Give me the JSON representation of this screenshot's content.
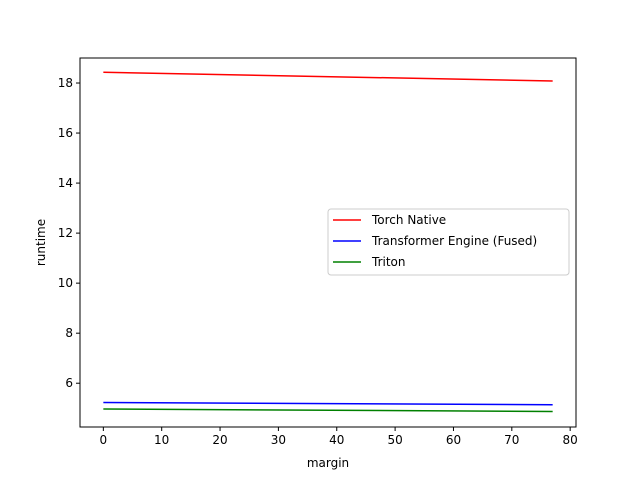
{
  "chart_data": {
    "type": "line",
    "title": "",
    "xlabel": "margin",
    "ylabel": "runtime",
    "xlim": [
      -4,
      81
    ],
    "ylim": [
      4.25,
      19.0
    ],
    "xticks": [
      0,
      10,
      20,
      30,
      40,
      50,
      60,
      70,
      80
    ],
    "yticks": [
      6,
      8,
      10,
      12,
      14,
      16,
      18
    ],
    "grid": false,
    "legend_position": "center-right",
    "series": [
      {
        "name": "Torch Native",
        "color": "#ff0000",
        "x": [
          0,
          77
        ],
        "y": [
          18.43,
          18.08
        ]
      },
      {
        "name": "Transformer Engine (Fused)",
        "color": "#0000ff",
        "x": [
          0,
          77
        ],
        "y": [
          5.23,
          5.14
        ]
      },
      {
        "name": "Triton",
        "color": "#008000",
        "x": [
          0,
          77
        ],
        "y": [
          4.97,
          4.87
        ]
      }
    ]
  }
}
